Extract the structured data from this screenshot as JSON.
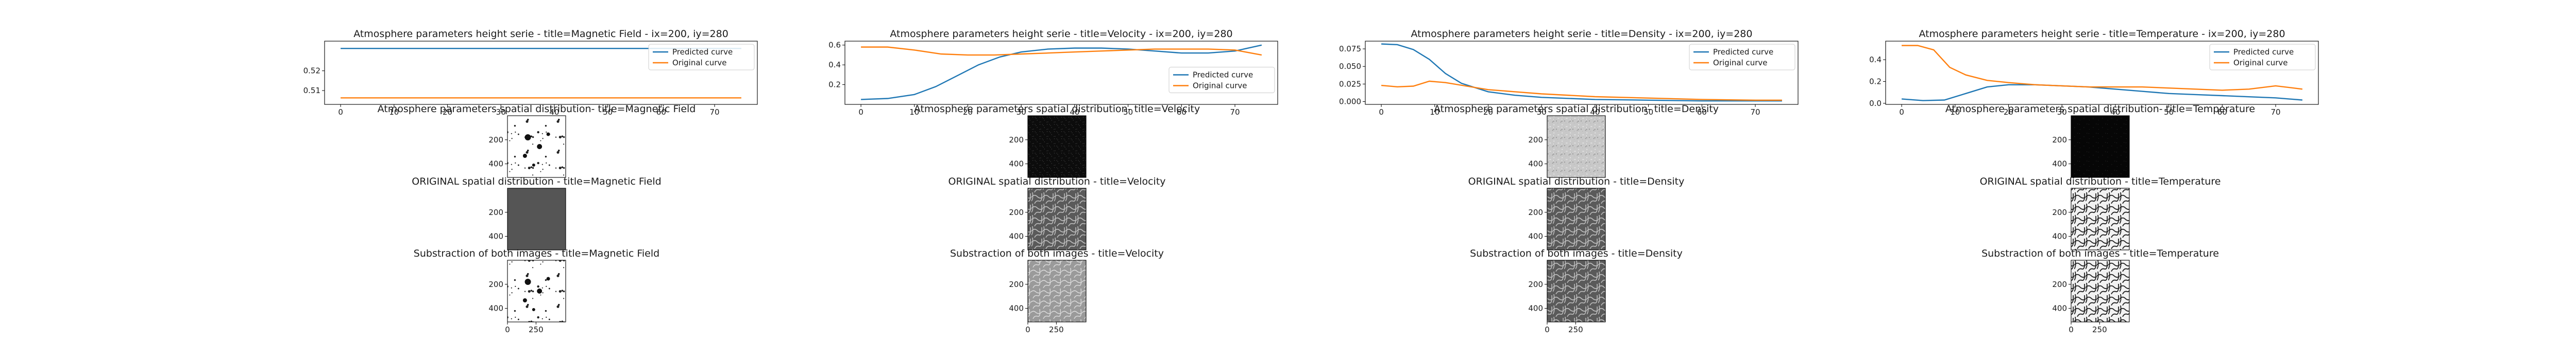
{
  "colors": {
    "predicted": "#1f77b4",
    "original": "#ff7f0e"
  },
  "chart_data": [
    {
      "type": "line",
      "title": "Atmosphere parameters height serie - title=Magnetic Field - ix=200, iy=280",
      "xlabel": "",
      "ylabel": "",
      "xlim": [
        -3,
        78
      ],
      "ylim": [
        0.503,
        0.535
      ],
      "xticks": [
        0,
        10,
        20,
        30,
        40,
        50,
        60,
        70
      ],
      "yticks": [
        0.51,
        0.52
      ],
      "ytick_labels": [
        "0.51",
        "0.52"
      ],
      "legend": "top-right",
      "series": [
        {
          "name": "Predicted curve",
          "x": [
            0,
            75
          ],
          "y": [
            0.5313,
            0.5313
          ]
        },
        {
          "name": "Original curve",
          "x": [
            0,
            75
          ],
          "y": [
            0.5063,
            0.5063
          ]
        }
      ]
    },
    {
      "type": "line",
      "title": "Atmosphere parameters height serie - title=Velocity - ix=200, iy=280",
      "xlabel": "",
      "ylabel": "",
      "xlim": [
        -3,
        78
      ],
      "ylim": [
        0.0,
        0.64
      ],
      "xticks": [
        0,
        10,
        20,
        30,
        40,
        50,
        60,
        70
      ],
      "yticks": [
        0.2,
        0.4,
        0.6
      ],
      "ytick_labels": [
        "0.2",
        "0.4",
        "0.6"
      ],
      "legend": "center-right",
      "series": [
        {
          "name": "Predicted curve",
          "x": [
            0,
            5,
            10,
            14,
            18,
            22,
            26,
            30,
            35,
            40,
            45,
            50,
            55,
            60,
            65,
            70,
            75
          ],
          "y": [
            0.05,
            0.06,
            0.1,
            0.18,
            0.29,
            0.4,
            0.48,
            0.53,
            0.56,
            0.57,
            0.57,
            0.56,
            0.54,
            0.52,
            0.52,
            0.54,
            0.6
          ]
        },
        {
          "name": "Original curve",
          "x": [
            0,
            5,
            10,
            15,
            20,
            25,
            30,
            35,
            40,
            45,
            50,
            55,
            60,
            65,
            70,
            75
          ],
          "y": [
            0.58,
            0.58,
            0.55,
            0.51,
            0.5,
            0.5,
            0.51,
            0.52,
            0.53,
            0.54,
            0.55,
            0.56,
            0.56,
            0.56,
            0.55,
            0.5
          ]
        }
      ]
    },
    {
      "type": "line",
      "title": "Atmosphere parameters height serie - title=Density - ix=200, iy=280",
      "xlabel": "",
      "ylabel": "",
      "xlim": [
        -3,
        78
      ],
      "ylim": [
        -0.004,
        0.086
      ],
      "xticks": [
        0,
        10,
        20,
        30,
        40,
        50,
        60,
        70
      ],
      "yticks": [
        0.0,
        0.025,
        0.05,
        0.075
      ],
      "ytick_labels": [
        "0.000",
        "0.025",
        "0.050",
        "0.075"
      ],
      "legend": "top-right",
      "series": [
        {
          "name": "Predicted curve",
          "x": [
            0,
            3,
            6,
            9,
            12,
            15,
            20,
            25,
            30,
            40,
            50,
            60,
            70,
            75
          ],
          "y": [
            0.082,
            0.081,
            0.074,
            0.06,
            0.04,
            0.026,
            0.014,
            0.009,
            0.006,
            0.003,
            0.002,
            0.001,
            0.001,
            0.001
          ]
        },
        {
          "name": "Original curve",
          "x": [
            0,
            3,
            6,
            9,
            12,
            16,
            20,
            25,
            30,
            40,
            50,
            60,
            70,
            75
          ],
          "y": [
            0.023,
            0.021,
            0.022,
            0.029,
            0.027,
            0.022,
            0.017,
            0.014,
            0.011,
            0.007,
            0.005,
            0.003,
            0.002,
            0.002
          ]
        }
      ]
    },
    {
      "type": "line",
      "title": "Atmosphere parameters height serie - title=Temperature - ix=200, iy=280",
      "xlabel": "",
      "ylabel": "",
      "xlim": [
        -3,
        78
      ],
      "ylim": [
        -0.01,
        0.57
      ],
      "xticks": [
        0,
        10,
        20,
        30,
        40,
        50,
        60,
        70
      ],
      "yticks": [
        0.0,
        0.2,
        0.4
      ],
      "ytick_labels": [
        "0.0",
        "0.2",
        "0.4"
      ],
      "legend": "top-right",
      "series": [
        {
          "name": "Predicted curve",
          "x": [
            0,
            4,
            8,
            12,
            16,
            20,
            25,
            30,
            35,
            40,
            45,
            50,
            55,
            60,
            65,
            70,
            75
          ],
          "y": [
            0.04,
            0.025,
            0.03,
            0.09,
            0.15,
            0.17,
            0.17,
            0.16,
            0.15,
            0.13,
            0.11,
            0.09,
            0.08,
            0.07,
            0.06,
            0.05,
            0.03
          ]
        },
        {
          "name": "Original curve",
          "x": [
            0,
            3,
            6,
            9,
            12,
            16,
            20,
            25,
            30,
            35,
            40,
            45,
            50,
            55,
            60,
            65,
            70,
            75
          ],
          "y": [
            0.53,
            0.53,
            0.49,
            0.33,
            0.26,
            0.21,
            0.19,
            0.17,
            0.16,
            0.15,
            0.15,
            0.15,
            0.14,
            0.13,
            0.12,
            0.13,
            0.16,
            0.13
          ]
        }
      ]
    },
    {
      "type": "heatmap",
      "title": "Atmosphere parameters spatial distribution- title=Magnetic Field",
      "yticks": [
        200,
        400
      ],
      "texture": "sparse-dark-on-white"
    },
    {
      "type": "heatmap",
      "title": "ORIGINAL spatial distribution - title=Magnetic Field",
      "yticks": [
        200,
        400
      ],
      "texture": "uniform-gray"
    },
    {
      "type": "heatmap",
      "title": "Substraction of both images - title=Magnetic Field",
      "yticks": [
        200,
        400
      ],
      "xticks": [
        0,
        250
      ],
      "texture": "sparse-dark-on-white"
    },
    {
      "type": "heatmap",
      "title": "Atmosphere parameters spatial distribution- title=Velocity",
      "yticks": [
        200,
        400
      ],
      "texture": "dark-speckle"
    },
    {
      "type": "heatmap",
      "title": "ORIGINAL spatial distribution - title=Velocity",
      "yticks": [
        200,
        400
      ],
      "texture": "gray-cells"
    },
    {
      "type": "heatmap",
      "title": "Substraction of both images - title=Velocity",
      "yticks": [
        200,
        400
      ],
      "xticks": [
        0,
        250
      ],
      "texture": "light-cells"
    },
    {
      "type": "heatmap",
      "title": "Atmosphere parameters spatial distribution- title=Density",
      "yticks": [
        200,
        400
      ],
      "texture": "light-noise"
    },
    {
      "type": "heatmap",
      "title": "ORIGINAL spatial distribution - title=Density",
      "yticks": [
        200,
        400
      ],
      "texture": "gray-cells"
    },
    {
      "type": "heatmap",
      "title": "Substraction of both images - title=Density",
      "yticks": [
        200,
        400
      ],
      "xticks": [
        0,
        250
      ],
      "texture": "gray-cells"
    },
    {
      "type": "heatmap",
      "title": "Atmosphere parameters spatial distribution- title=Temperature",
      "yticks": [
        200,
        400
      ],
      "texture": "near-black"
    },
    {
      "type": "heatmap",
      "title": "ORIGINAL spatial distribution - title=Temperature",
      "yticks": [
        200,
        400
      ],
      "texture": "white-cells"
    },
    {
      "type": "heatmap",
      "title": "Substraction of both images - title=Temperature",
      "yticks": [
        200,
        400
      ],
      "xticks": [
        0,
        250
      ],
      "texture": "white-cells"
    }
  ]
}
